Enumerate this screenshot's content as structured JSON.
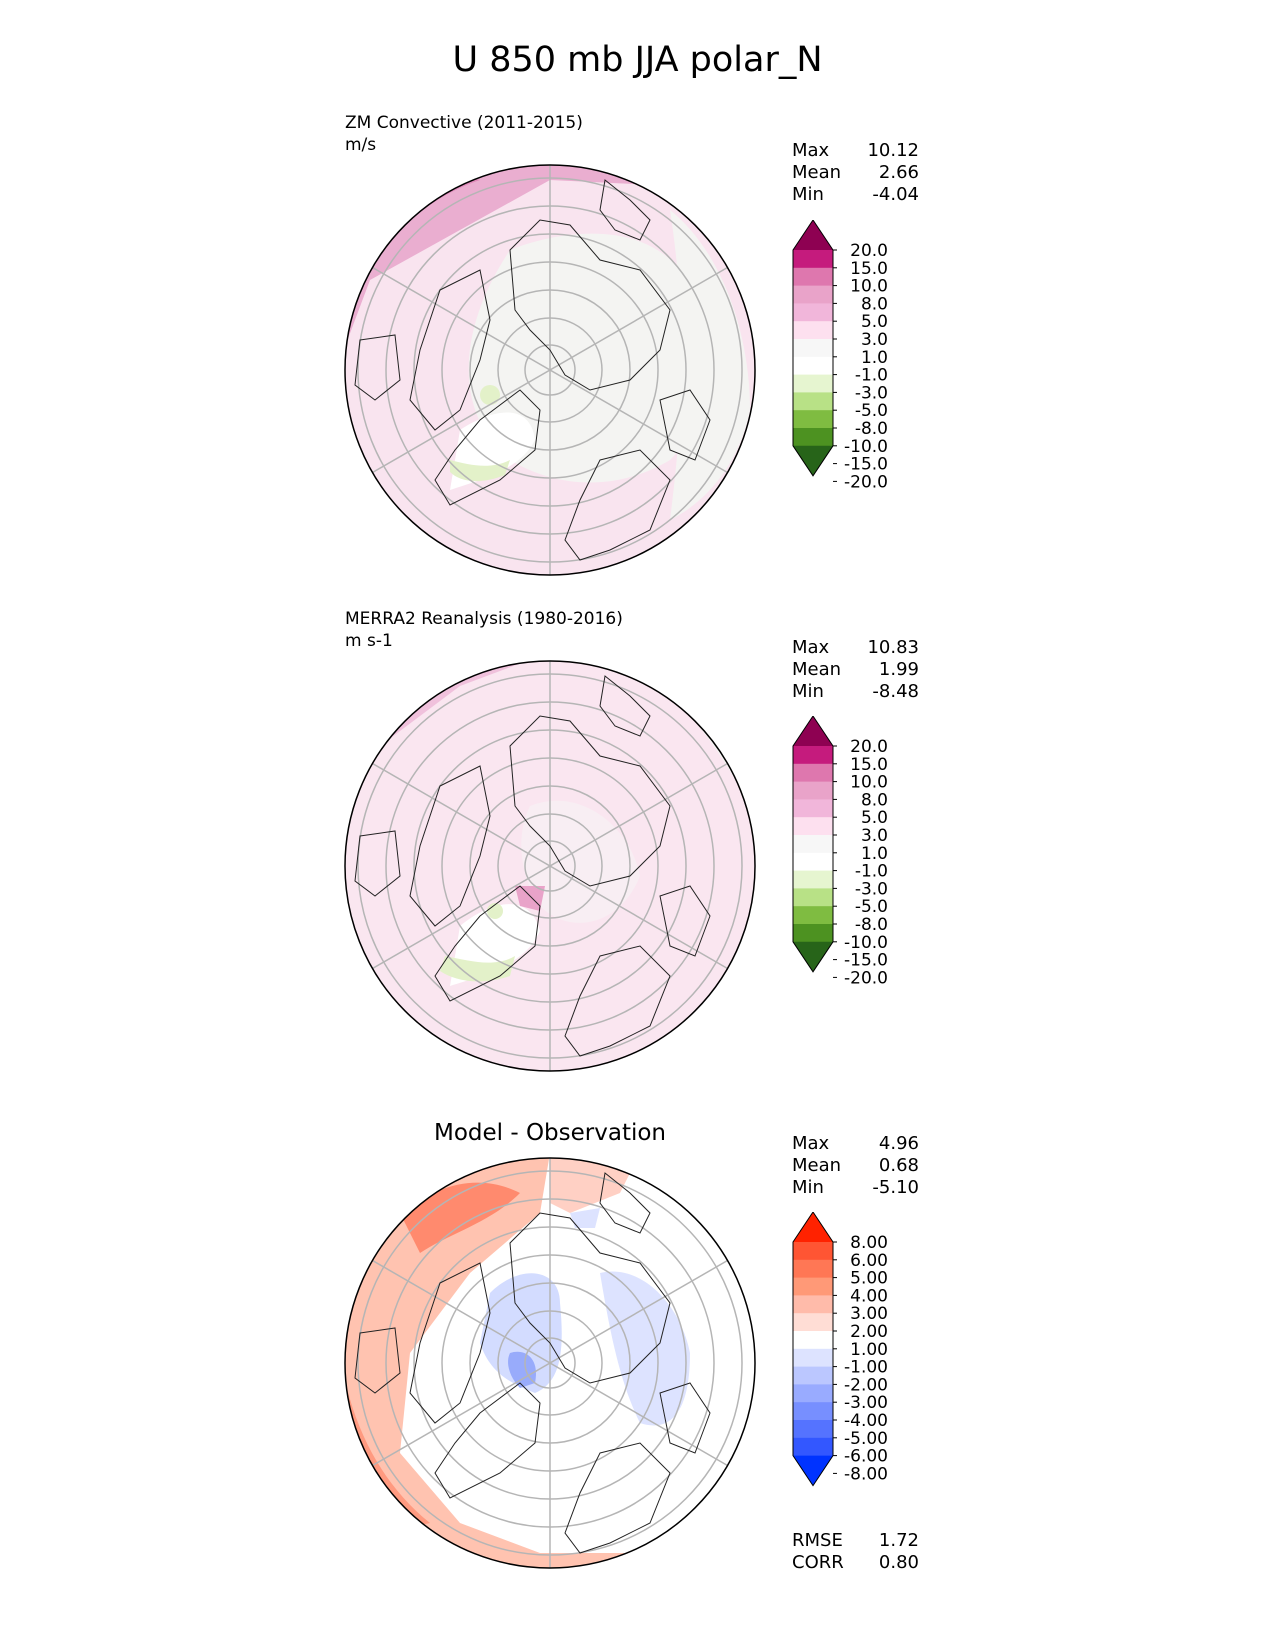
{
  "title": "U 850 mb JJA polar_N",
  "colors": {
    "test_ref_levels": [
      "#8e0152",
      "#c51b7d",
      "#de77ae",
      "#e9a3c9",
      "#f1b6da",
      "#fde0ef",
      "#f7f7f7",
      "#ffffff",
      "#e6f5d0",
      "#b8e186",
      "#7fbc41",
      "#4d9221",
      "#276419"
    ],
    "diff_levels": [
      "#ff2200",
      "#ff5533",
      "#ff7755",
      "#ff9977",
      "#ffbbaa",
      "#ffddd5",
      "#ffffff",
      "#dde3ff",
      "#bbc7ff",
      "#99abff",
      "#778fff",
      "#5573ff",
      "#3357ff",
      "#0033ff"
    ]
  },
  "panels": {
    "test": {
      "name": "ZM Convective (2011-2015)",
      "units": "m/s",
      "stats": {
        "max_label": "Max",
        "max": "10.12",
        "mean_label": "Mean",
        "mean": "2.66",
        "min_label": "Min",
        "min": "-4.04"
      }
    },
    "ref": {
      "name": "MERRA2 Reanalysis (1980-2016)",
      "units": "m s-1",
      "stats": {
        "max_label": "Max",
        "max": "10.83",
        "mean_label": "Mean",
        "mean": "1.99",
        "min_label": "Min",
        "min": "-8.48"
      }
    },
    "diff": {
      "name": "Model - Observation",
      "stats": {
        "max_label": "Max",
        "max": "4.96",
        "mean_label": "Mean",
        "mean": "0.68",
        "min_label": "Min",
        "min": "-5.10"
      },
      "metrics": {
        "rmse_label": "RMSE",
        "rmse": "1.72",
        "corr_label": "CORR",
        "corr": "0.80"
      }
    }
  },
  "chart_data": [
    {
      "type": "heatmap",
      "projection": "north polar stereographic",
      "title": "ZM Convective (2011-2015)",
      "units": "m/s",
      "colorbar_ticks": [
        "20.0",
        "15.0",
        "10.0",
        "8.0",
        "5.0",
        "3.0",
        "1.0",
        "-1.0",
        "-3.0",
        "-5.0",
        "-8.0",
        "-10.0",
        "-15.0",
        "-20.0"
      ],
      "max": 10.12,
      "mean": 2.66,
      "min": -4.04
    },
    {
      "type": "heatmap",
      "projection": "north polar stereographic",
      "title": "MERRA2 Reanalysis (1980-2016)",
      "units": "m s-1",
      "colorbar_ticks": [
        "20.0",
        "15.0",
        "10.0",
        "8.0",
        "5.0",
        "3.0",
        "1.0",
        "-1.0",
        "-3.0",
        "-5.0",
        "-8.0",
        "-10.0",
        "-15.0",
        "-20.0"
      ],
      "max": 10.83,
      "mean": 1.99,
      "min": -8.48
    },
    {
      "type": "heatmap",
      "projection": "north polar stereographic",
      "title": "Model - Observation",
      "colorbar_ticks": [
        "8.00",
        "6.00",
        "5.00",
        "4.00",
        "3.00",
        "2.00",
        "1.00",
        "-1.00",
        "-2.00",
        "-3.00",
        "-4.00",
        "-5.00",
        "-6.00",
        "-8.00"
      ],
      "max": 4.96,
      "mean": 0.68,
      "min": -5.1,
      "rmse": 1.72,
      "corr": 0.8
    }
  ]
}
